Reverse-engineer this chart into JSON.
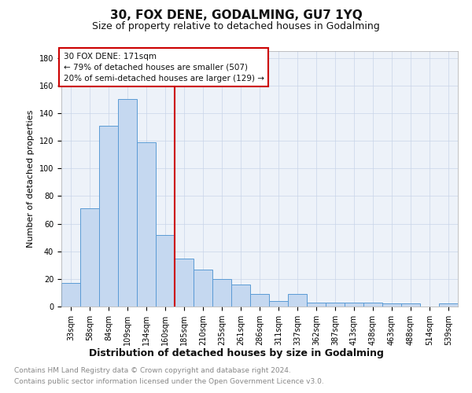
{
  "title": "30, FOX DENE, GODALMING, GU7 1YQ",
  "subtitle": "Size of property relative to detached houses in Godalming",
  "xlabel": "Distribution of detached houses by size in Godalming",
  "ylabel": "Number of detached properties",
  "categories": [
    "33sqm",
    "58sqm",
    "84sqm",
    "109sqm",
    "134sqm",
    "160sqm",
    "185sqm",
    "210sqm",
    "235sqm",
    "261sqm",
    "286sqm",
    "311sqm",
    "337sqm",
    "362sqm",
    "387sqm",
    "413sqm",
    "438sqm",
    "463sqm",
    "488sqm",
    "514sqm",
    "539sqm"
  ],
  "values": [
    17,
    71,
    131,
    150,
    119,
    52,
    35,
    27,
    20,
    16,
    9,
    4,
    9,
    3,
    3,
    3,
    3,
    2,
    2,
    0,
    2
  ],
  "bar_color": "#c5d8f0",
  "bar_edge_color": "#5b9bd5",
  "vline_x": 5.5,
  "vline_color": "#cc0000",
  "annotation_line1": "30 FOX DENE: 171sqm",
  "annotation_line2": "← 79% of detached houses are smaller (507)",
  "annotation_line3": "20% of semi-detached houses are larger (129) →",
  "annotation_box_color": "#cc0000",
  "ylim": [
    0,
    185
  ],
  "yticks": [
    0,
    20,
    40,
    60,
    80,
    100,
    120,
    140,
    160,
    180
  ],
  "footer_line1": "Contains HM Land Registry data © Crown copyright and database right 2024.",
  "footer_line2": "Contains public sector information licensed under the Open Government Licence v3.0.",
  "title_fontsize": 11,
  "subtitle_fontsize": 9,
  "xlabel_fontsize": 9,
  "ylabel_fontsize": 8,
  "tick_fontsize": 7,
  "annotation_fontsize": 7.5,
  "footer_fontsize": 6.5,
  "background_color": "#ffffff",
  "plot_bg_color": "#edf2f9",
  "grid_color": "#c8d4e8"
}
